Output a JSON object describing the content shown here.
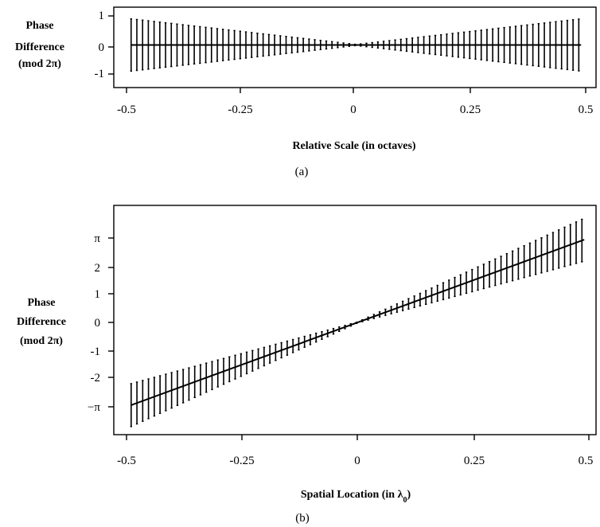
{
  "chart_data": [
    {
      "type": "line",
      "panel": "(a)",
      "caption": "(a)",
      "title": "",
      "xlabel": "Relative Scale  (in octaves)",
      "ylabel": [
        "Phase",
        "Difference",
        "(mod 2π)"
      ],
      "xlim": [
        -0.5,
        0.5
      ],
      "ylim": [
        -1.3,
        1.3
      ],
      "xticks": [
        {
          "value": -0.5,
          "label": "-0.5"
        },
        {
          "value": -0.25,
          "label": "-0.25"
        },
        {
          "value": 0,
          "label": "0"
        },
        {
          "value": 0.25,
          "label": "0.25"
        },
        {
          "value": 0.5,
          "label": "0.5"
        }
      ],
      "yticks": [
        {
          "value": 1,
          "label": "1"
        },
        {
          "value": 0,
          "label": "0"
        },
        {
          "value": -1,
          "label": "-1"
        }
      ],
      "grid": false,
      "series": [
        {
          "mean": {
            "kind": "linear",
            "slope": 0,
            "intercept": 0
          },
          "error_bars": {
            "x_start": -0.49,
            "x_end": 0.49,
            "step": 0.0125,
            "half_range_at_edges": 0.9,
            "half_range_at_center": 0.02,
            "shape": "proportional to |x|"
          }
        }
      ]
    },
    {
      "type": "line",
      "panel": "(b)",
      "caption": "(b)",
      "title": "",
      "xlabel": "Spatial Location (in λ0)",
      "ylabel": [
        "Phase",
        "Difference",
        "(mod 2π)"
      ],
      "xlim": [
        -0.52,
        0.52
      ],
      "ylim": [
        -4.0,
        4.0
      ],
      "xticks": [
        {
          "value": -0.5,
          "label": "-0.5"
        },
        {
          "value": -0.25,
          "label": "-0.25"
        },
        {
          "value": 0,
          "label": "0"
        },
        {
          "value": 0.25,
          "label": "0.25"
        },
        {
          "value": 0.5,
          "label": "0.5"
        }
      ],
      "yticks": [
        {
          "value": 3.14159,
          "label": "π"
        },
        {
          "value": 2,
          "label": "2"
        },
        {
          "value": 1,
          "label": "1"
        },
        {
          "value": 0,
          "label": "0"
        },
        {
          "value": -1,
          "label": "-1"
        },
        {
          "value": -2,
          "label": "-2"
        },
        {
          "value": -3.14159,
          "label": "−π"
        }
      ],
      "grid": false,
      "series": [
        {
          "mean": {
            "kind": "linear",
            "slope": 6.2832,
            "intercept": 0
          },
          "error_bars": {
            "x_start": -0.49,
            "x_end": 0.49,
            "step": 0.0125,
            "half_range_at_edges": 0.8,
            "half_range_at_center": 0.02,
            "shape": "proportional to |x|"
          }
        }
      ]
    }
  ]
}
